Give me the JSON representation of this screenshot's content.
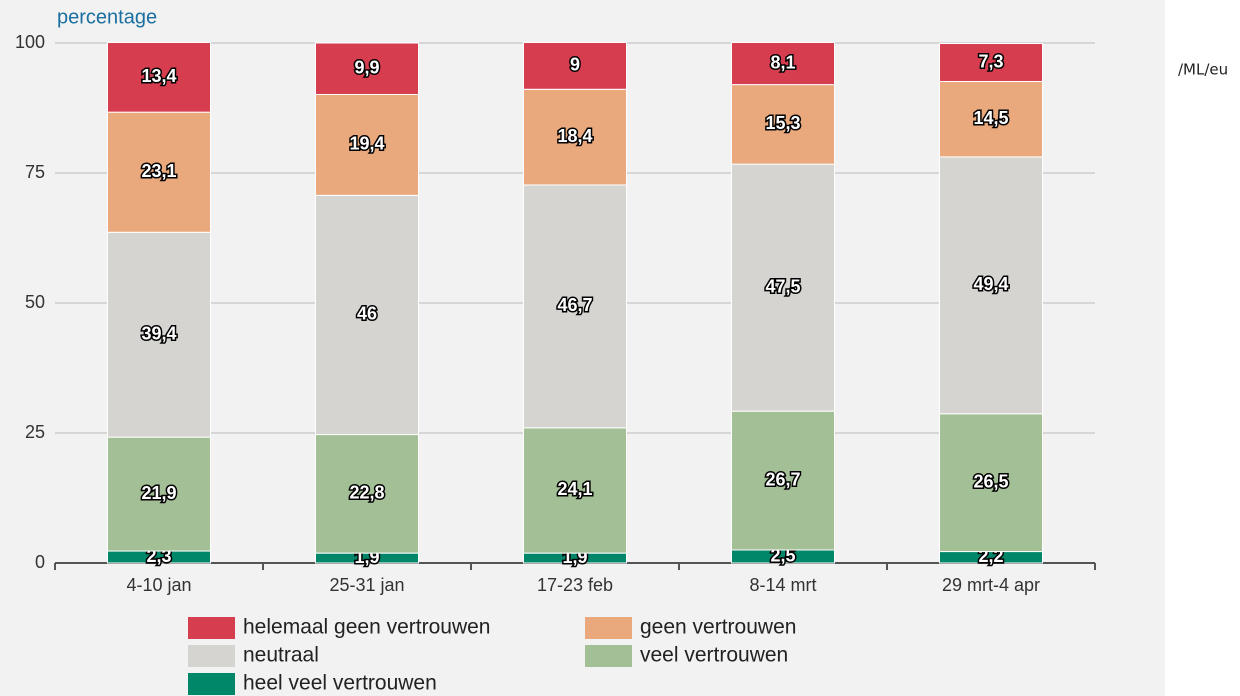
{
  "chart_data": {
    "type": "stacked_bar",
    "y_axis_label": "percentage",
    "annotation": "/ML/eu",
    "categories": [
      "4-10 jan",
      "25-31 jan",
      "17-23 feb",
      "8-14 mrt",
      "29 mrt-4 apr"
    ],
    "series": [
      {
        "name": "heel veel vertrouwen",
        "color": "#00876a",
        "values": [
          2.3,
          1.9,
          1.9,
          2.5,
          2.2
        ],
        "value_labels": [
          "2,3",
          "1,9",
          "1,9",
          "2,5",
          "2,2"
        ]
      },
      {
        "name": "veel vertrouwen",
        "color": "#a3bf96",
        "values": [
          21.9,
          22.8,
          24.1,
          26.7,
          26.5
        ],
        "value_labels": [
          "21,9",
          "22,8",
          "24,1",
          "26,7",
          "26,5"
        ]
      },
      {
        "name": "neutraal",
        "color": "#d5d4d0",
        "values": [
          39.4,
          46,
          46.7,
          47.5,
          49.4
        ],
        "value_labels": [
          "39,4",
          "46",
          "46,7",
          "47,5",
          "49,4"
        ]
      },
      {
        "name": "geen vertrouwen",
        "color": "#e9a97c",
        "values": [
          23.1,
          19.4,
          18.4,
          15.3,
          14.5
        ],
        "value_labels": [
          "23,1",
          "19,4",
          "18,4",
          "15,3",
          "14,5"
        ]
      },
      {
        "name": "helemaal geen vertrouwen",
        "color": "#d63e50",
        "values": [
          13.4,
          9.9,
          9,
          8.1,
          7.3
        ],
        "value_labels": [
          "13,4",
          "9,9",
          "9",
          "8,1",
          "7,3"
        ]
      }
    ],
    "ylim": [
      0,
      100
    ],
    "yticks": [
      0,
      25,
      50,
      75,
      100
    ],
    "grid": true
  }
}
